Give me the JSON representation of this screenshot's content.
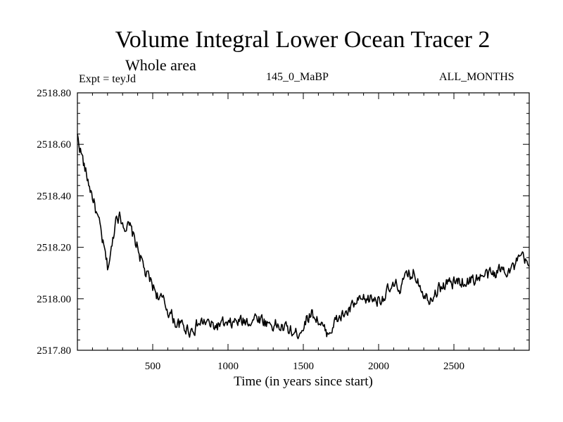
{
  "chart_data": {
    "type": "line",
    "title": "Volume Integral Lower Ocean Tracer 2",
    "subtitle": "Whole area",
    "header_left": "Expt = teyJd",
    "header_center": "145_0_MaBP",
    "header_right": "ALL_MONTHS",
    "xlabel": "Time (in years since start)",
    "ylabel": "",
    "xlim": [
      0,
      3000
    ],
    "ylim": [
      2517.8,
      2518.8
    ],
    "x_ticks": [
      500,
      1000,
      1500,
      2000,
      2500
    ],
    "x_tick_labels": [
      "500",
      "1000",
      "1500",
      "2000",
      "2500"
    ],
    "y_ticks": [
      2517.8,
      2518.0,
      2518.2,
      2518.4,
      2518.6,
      2518.8
    ],
    "y_tick_labels": [
      "2517.80",
      "2518.00",
      "2518.20",
      "2518.40",
      "2518.60",
      "2518.80"
    ],
    "grid": false,
    "series": [
      {
        "name": "Volume Integral Lower Ocean Tracer 2",
        "x": [
          0,
          25,
          50,
          100,
          150,
          200,
          230,
          260,
          300,
          350,
          400,
          450,
          500,
          550,
          600,
          650,
          700,
          750,
          800,
          850,
          900,
          950,
          1000,
          1050,
          1100,
          1150,
          1200,
          1250,
          1300,
          1350,
          1400,
          1450,
          1500,
          1550,
          1600,
          1650,
          1700,
          1750,
          1800,
          1850,
          1900,
          1950,
          2000,
          2050,
          2100,
          2150,
          2200,
          2230,
          2260,
          2300,
          2330,
          2350,
          2400,
          2450,
          2500,
          2550,
          2600,
          2650,
          2700,
          2750,
          2800,
          2850,
          2900,
          2950,
          3000
        ],
        "y": [
          2518.63,
          2518.57,
          2518.5,
          2518.4,
          2518.27,
          2518.12,
          2518.2,
          2518.34,
          2518.3,
          2518.27,
          2518.2,
          2518.1,
          2518.05,
          2518.0,
          2517.96,
          2517.91,
          2517.89,
          2517.88,
          2517.9,
          2517.91,
          2517.89,
          2517.9,
          2517.89,
          2517.91,
          2517.91,
          2517.92,
          2517.93,
          2517.91,
          2517.9,
          2517.89,
          2517.88,
          2517.86,
          2517.9,
          2517.95,
          2517.92,
          2517.86,
          2517.9,
          2517.93,
          2517.95,
          2517.98,
          2517.99,
          2518.0,
          2518.0,
          2518.02,
          2518.04,
          2518.05,
          2518.09,
          2518.1,
          2518.08,
          2518.03,
          2518.0,
          2518.02,
          2518.04,
          2518.06,
          2518.06,
          2518.07,
          2518.07,
          2518.08,
          2518.09,
          2518.09,
          2518.11,
          2518.12,
          2518.12,
          2518.16,
          2518.12
        ]
      }
    ]
  }
}
